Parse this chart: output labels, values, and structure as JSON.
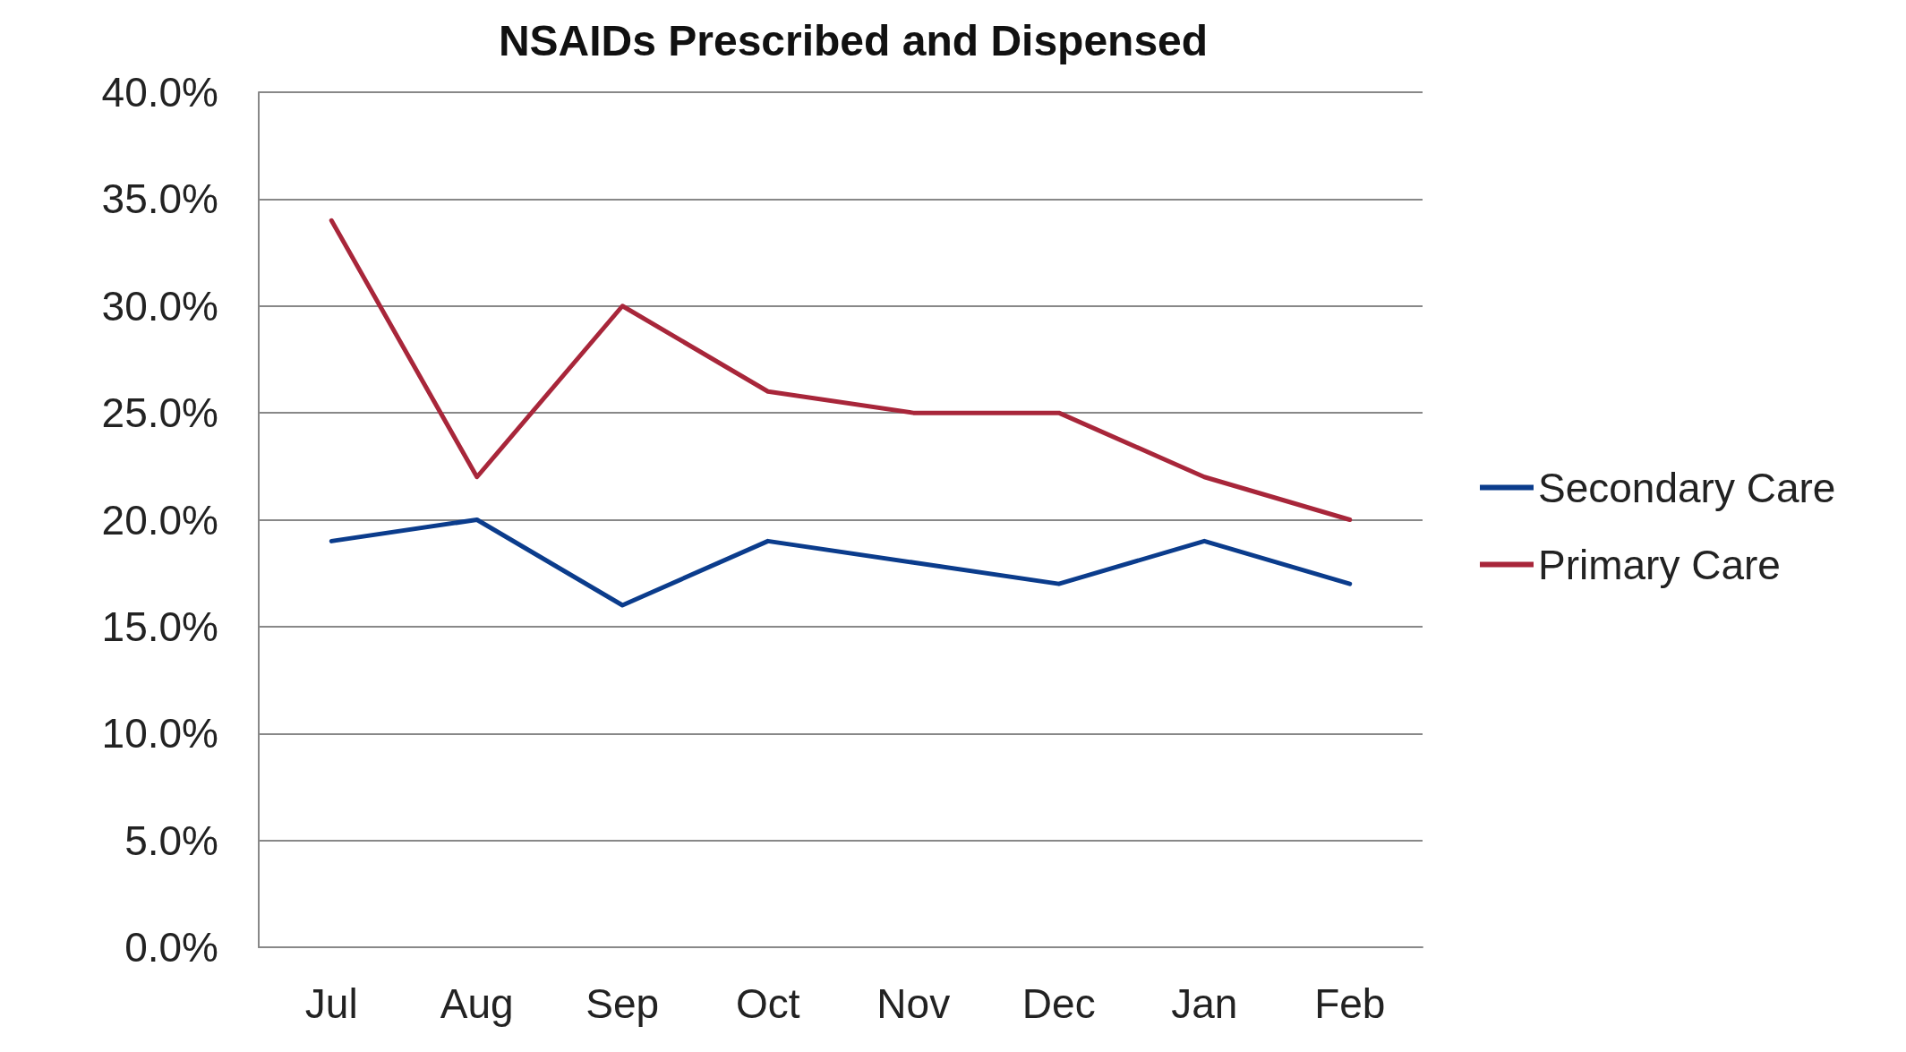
{
  "chart_data": {
    "type": "line",
    "title": "NSAIDs Prescribed and Dispensed",
    "categories": [
      "Jul",
      "Aug",
      "Sep",
      "Oct",
      "Nov",
      "Dec",
      "Jan",
      "Feb"
    ],
    "series": [
      {
        "name": "Secondary Care",
        "color": "#0b3c8c",
        "values": [
          19,
          20,
          16,
          19,
          18,
          17,
          19,
          17
        ]
      },
      {
        "name": "Primary Care",
        "color": "#a8263a",
        "values": [
          34,
          22,
          30,
          26,
          25,
          25,
          22,
          20
        ]
      }
    ],
    "ylim": [
      0,
      40
    ],
    "yticks": [
      {
        "value": 0,
        "label": "0.0%"
      },
      {
        "value": 5,
        "label": "5.0%"
      },
      {
        "value": 10,
        "label": "10.0%"
      },
      {
        "value": 15,
        "label": "15.0%"
      },
      {
        "value": 20,
        "label": "20.0%"
      },
      {
        "value": 25,
        "label": "25.0%"
      },
      {
        "value": 30,
        "label": "30.0%"
      },
      {
        "value": 35,
        "label": "35.0%"
      },
      {
        "value": 40,
        "label": "40.0%"
      }
    ],
    "grid": "y",
    "legend": "right",
    "marker": "none",
    "line_style": "solid"
  }
}
